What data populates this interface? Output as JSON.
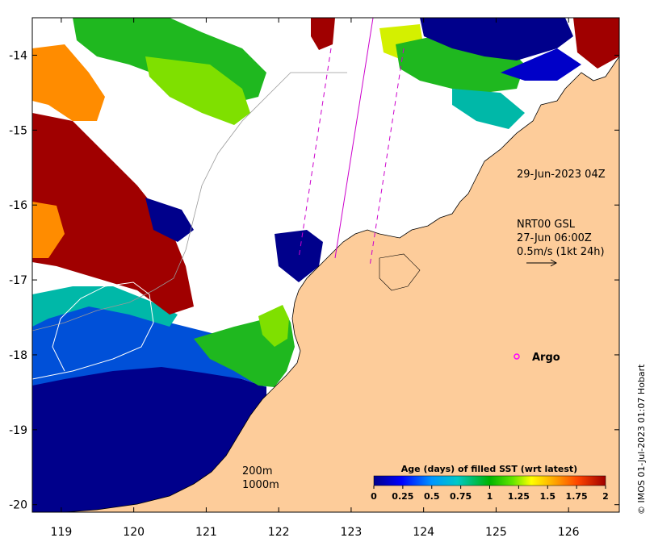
{
  "map": {
    "lon_ticks": [
      "119",
      "120",
      "121",
      "122",
      "123",
      "124",
      "125",
      "126"
    ],
    "lat_ticks": [
      "-14",
      "-15",
      "-16",
      "-17",
      "-18",
      "-19",
      "-20"
    ],
    "lon_range": [
      118.6,
      126.7
    ],
    "lat_range": [
      -20.1,
      -13.5
    ]
  },
  "annotations": {
    "track_time": "29-Jun-2023 04Z",
    "current_product": "NRT00 GSL",
    "current_time": "27-Jun 06:00Z",
    "current_scale": "0.5m/s (1kt 24h)",
    "argo_label": "Argo",
    "depth_200": "200m",
    "depth_1000": "1000m"
  },
  "colorbar": {
    "title": "Age (days) of filled SST (wrt latest)",
    "ticks": [
      "0",
      "0.25",
      "0.5",
      "0.75",
      "1",
      "1.25",
      "1.5",
      "1.75",
      "2"
    ],
    "stops": [
      "#00008b",
      "#0000ff",
      "#0096ff",
      "#00c8c8",
      "#00b400",
      "#64e600",
      "#ffff00",
      "#ffa500",
      "#ff4500",
      "#a00000"
    ]
  },
  "credit": "© IMOS 01-Jul-2023 01:07 Hobart",
  "colors": {
    "land": "#fdcc9a",
    "no_data": "#ffffff",
    "track": "#cc00cc",
    "argo": "#ff00ff"
  }
}
